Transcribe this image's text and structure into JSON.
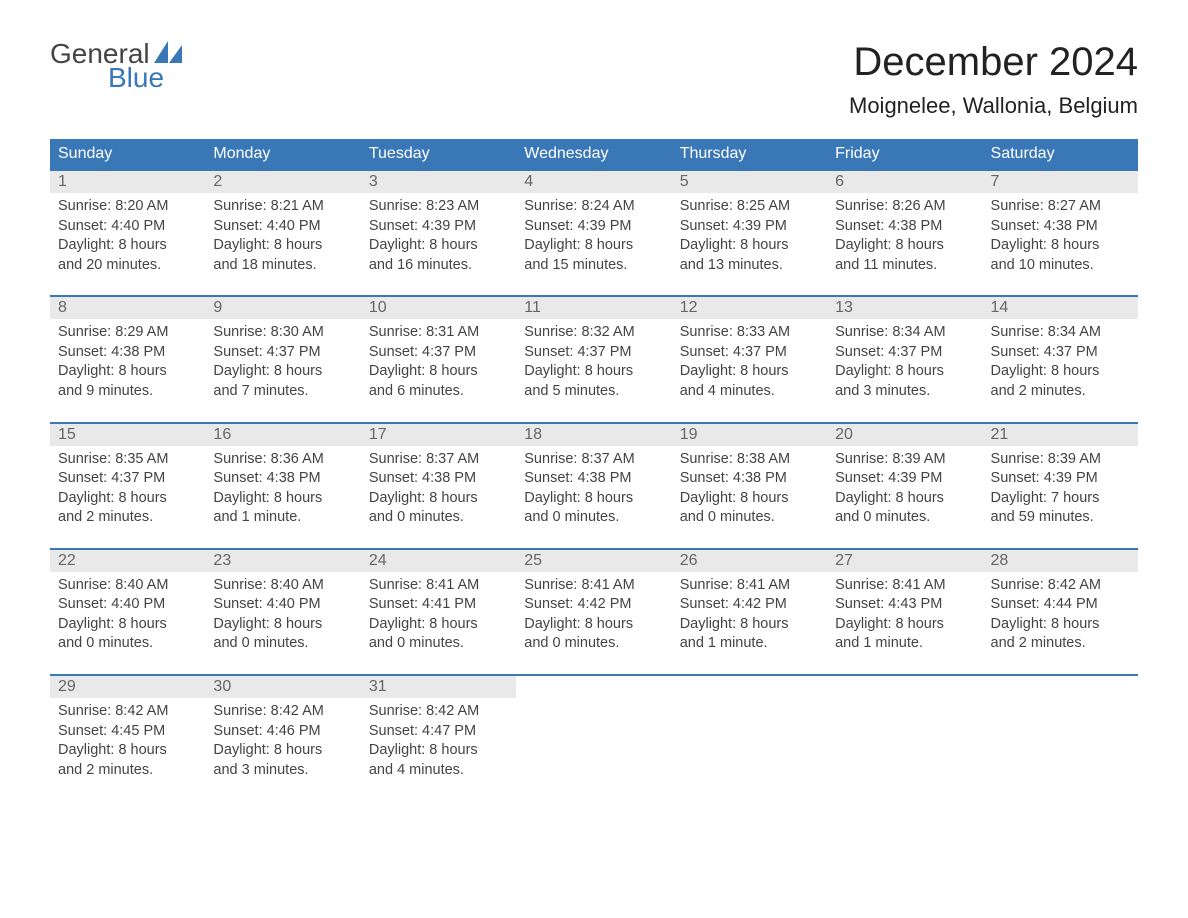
{
  "logo": {
    "line1": "General",
    "line2": "Blue"
  },
  "header": {
    "month_title": "December 2024",
    "location": "Moignelee, Wallonia, Belgium"
  },
  "colors": {
    "brand_blue": "#3a77b7",
    "header_row_bg": "#3a77b7",
    "header_row_text": "#ffffff",
    "daynum_bg": "#e9e9e9",
    "daynum_text": "#666666",
    "body_text": "#444444",
    "page_bg": "#ffffff"
  },
  "days_of_week": [
    "Sunday",
    "Monday",
    "Tuesday",
    "Wednesday",
    "Thursday",
    "Friday",
    "Saturday"
  ],
  "weeks": [
    [
      {
        "n": "1",
        "sunrise": "Sunrise: 8:20 AM",
        "sunset": "Sunset: 4:40 PM",
        "d1": "Daylight: 8 hours",
        "d2": "and 20 minutes."
      },
      {
        "n": "2",
        "sunrise": "Sunrise: 8:21 AM",
        "sunset": "Sunset: 4:40 PM",
        "d1": "Daylight: 8 hours",
        "d2": "and 18 minutes."
      },
      {
        "n": "3",
        "sunrise": "Sunrise: 8:23 AM",
        "sunset": "Sunset: 4:39 PM",
        "d1": "Daylight: 8 hours",
        "d2": "and 16 minutes."
      },
      {
        "n": "4",
        "sunrise": "Sunrise: 8:24 AM",
        "sunset": "Sunset: 4:39 PM",
        "d1": "Daylight: 8 hours",
        "d2": "and 15 minutes."
      },
      {
        "n": "5",
        "sunrise": "Sunrise: 8:25 AM",
        "sunset": "Sunset: 4:39 PM",
        "d1": "Daylight: 8 hours",
        "d2": "and 13 minutes."
      },
      {
        "n": "6",
        "sunrise": "Sunrise: 8:26 AM",
        "sunset": "Sunset: 4:38 PM",
        "d1": "Daylight: 8 hours",
        "d2": "and 11 minutes."
      },
      {
        "n": "7",
        "sunrise": "Sunrise: 8:27 AM",
        "sunset": "Sunset: 4:38 PM",
        "d1": "Daylight: 8 hours",
        "d2": "and 10 minutes."
      }
    ],
    [
      {
        "n": "8",
        "sunrise": "Sunrise: 8:29 AM",
        "sunset": "Sunset: 4:38 PM",
        "d1": "Daylight: 8 hours",
        "d2": "and 9 minutes."
      },
      {
        "n": "9",
        "sunrise": "Sunrise: 8:30 AM",
        "sunset": "Sunset: 4:37 PM",
        "d1": "Daylight: 8 hours",
        "d2": "and 7 minutes."
      },
      {
        "n": "10",
        "sunrise": "Sunrise: 8:31 AM",
        "sunset": "Sunset: 4:37 PM",
        "d1": "Daylight: 8 hours",
        "d2": "and 6 minutes."
      },
      {
        "n": "11",
        "sunrise": "Sunrise: 8:32 AM",
        "sunset": "Sunset: 4:37 PM",
        "d1": "Daylight: 8 hours",
        "d2": "and 5 minutes."
      },
      {
        "n": "12",
        "sunrise": "Sunrise: 8:33 AM",
        "sunset": "Sunset: 4:37 PM",
        "d1": "Daylight: 8 hours",
        "d2": "and 4 minutes."
      },
      {
        "n": "13",
        "sunrise": "Sunrise: 8:34 AM",
        "sunset": "Sunset: 4:37 PM",
        "d1": "Daylight: 8 hours",
        "d2": "and 3 minutes."
      },
      {
        "n": "14",
        "sunrise": "Sunrise: 8:34 AM",
        "sunset": "Sunset: 4:37 PM",
        "d1": "Daylight: 8 hours",
        "d2": "and 2 minutes."
      }
    ],
    [
      {
        "n": "15",
        "sunrise": "Sunrise: 8:35 AM",
        "sunset": "Sunset: 4:37 PM",
        "d1": "Daylight: 8 hours",
        "d2": "and 2 minutes."
      },
      {
        "n": "16",
        "sunrise": "Sunrise: 8:36 AM",
        "sunset": "Sunset: 4:38 PM",
        "d1": "Daylight: 8 hours",
        "d2": "and 1 minute."
      },
      {
        "n": "17",
        "sunrise": "Sunrise: 8:37 AM",
        "sunset": "Sunset: 4:38 PM",
        "d1": "Daylight: 8 hours",
        "d2": "and 0 minutes."
      },
      {
        "n": "18",
        "sunrise": "Sunrise: 8:37 AM",
        "sunset": "Sunset: 4:38 PM",
        "d1": "Daylight: 8 hours",
        "d2": "and 0 minutes."
      },
      {
        "n": "19",
        "sunrise": "Sunrise: 8:38 AM",
        "sunset": "Sunset: 4:38 PM",
        "d1": "Daylight: 8 hours",
        "d2": "and 0 minutes."
      },
      {
        "n": "20",
        "sunrise": "Sunrise: 8:39 AM",
        "sunset": "Sunset: 4:39 PM",
        "d1": "Daylight: 8 hours",
        "d2": "and 0 minutes."
      },
      {
        "n": "21",
        "sunrise": "Sunrise: 8:39 AM",
        "sunset": "Sunset: 4:39 PM",
        "d1": "Daylight: 7 hours",
        "d2": "and 59 minutes."
      }
    ],
    [
      {
        "n": "22",
        "sunrise": "Sunrise: 8:40 AM",
        "sunset": "Sunset: 4:40 PM",
        "d1": "Daylight: 8 hours",
        "d2": "and 0 minutes."
      },
      {
        "n": "23",
        "sunrise": "Sunrise: 8:40 AM",
        "sunset": "Sunset: 4:40 PM",
        "d1": "Daylight: 8 hours",
        "d2": "and 0 minutes."
      },
      {
        "n": "24",
        "sunrise": "Sunrise: 8:41 AM",
        "sunset": "Sunset: 4:41 PM",
        "d1": "Daylight: 8 hours",
        "d2": "and 0 minutes."
      },
      {
        "n": "25",
        "sunrise": "Sunrise: 8:41 AM",
        "sunset": "Sunset: 4:42 PM",
        "d1": "Daylight: 8 hours",
        "d2": "and 0 minutes."
      },
      {
        "n": "26",
        "sunrise": "Sunrise: 8:41 AM",
        "sunset": "Sunset: 4:42 PM",
        "d1": "Daylight: 8 hours",
        "d2": "and 1 minute."
      },
      {
        "n": "27",
        "sunrise": "Sunrise: 8:41 AM",
        "sunset": "Sunset: 4:43 PM",
        "d1": "Daylight: 8 hours",
        "d2": "and 1 minute."
      },
      {
        "n": "28",
        "sunrise": "Sunrise: 8:42 AM",
        "sunset": "Sunset: 4:44 PM",
        "d1": "Daylight: 8 hours",
        "d2": "and 2 minutes."
      }
    ],
    [
      {
        "n": "29",
        "sunrise": "Sunrise: 8:42 AM",
        "sunset": "Sunset: 4:45 PM",
        "d1": "Daylight: 8 hours",
        "d2": "and 2 minutes."
      },
      {
        "n": "30",
        "sunrise": "Sunrise: 8:42 AM",
        "sunset": "Sunset: 4:46 PM",
        "d1": "Daylight: 8 hours",
        "d2": "and 3 minutes."
      },
      {
        "n": "31",
        "sunrise": "Sunrise: 8:42 AM",
        "sunset": "Sunset: 4:47 PM",
        "d1": "Daylight: 8 hours",
        "d2": "and 4 minutes."
      },
      {
        "empty": true
      },
      {
        "empty": true
      },
      {
        "empty": true
      },
      {
        "empty": true
      }
    ]
  ]
}
